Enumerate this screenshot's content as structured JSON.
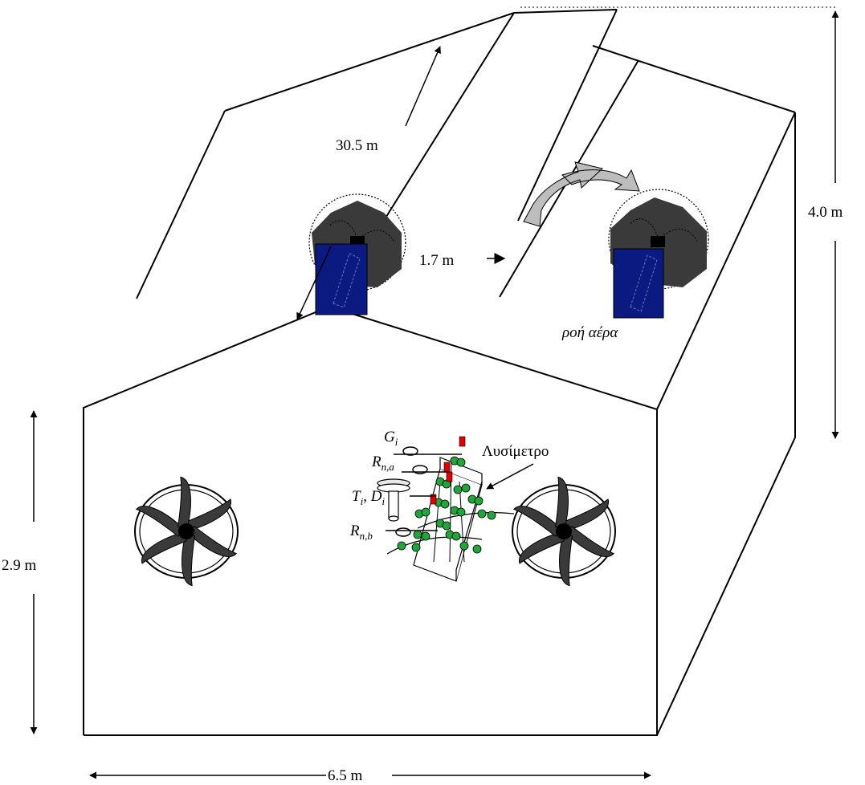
{
  "dimensions": {
    "length": "30.5 m",
    "vent_width": "1.7 m",
    "ridge_height": "4.0 m",
    "wall_height": "2.9 m",
    "width": "6.5 m"
  },
  "labels": {
    "airflow": "ροή αέρα",
    "lysimeter": "Λυσίμετρο"
  },
  "sensors": {
    "G": {
      "main": "G",
      "sub": "i"
    },
    "Rna": {
      "main": "R",
      "sub": "n,a"
    },
    "TD": {
      "t": "T",
      "t_sub": "i",
      "sep": ",  ",
      "d": "D",
      "d_sub": "i"
    },
    "Rnb": {
      "main": "R",
      "sub": "n,b"
    }
  },
  "colors": {
    "outline": "#000000",
    "fan_blade": "#3a3a3a",
    "cooler_pad": "#0a1a80",
    "arrow_fill": "#bdbdbd",
    "plant": "#1fa83a",
    "sensor_red": "#e00000"
  }
}
